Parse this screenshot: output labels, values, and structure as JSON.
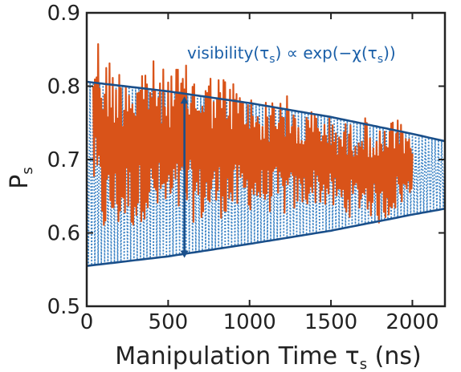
{
  "chart_data": {
    "type": "line",
    "title": "",
    "xlabel": "Manipulation Time τ",
    "xlabel_sub": "s",
    "xlabel_unit": " (ns)",
    "ylabel": "P",
    "ylabel_sub": "s",
    "xlim": [
      0,
      2200
    ],
    "ylim": [
      0.5,
      0.9
    ],
    "xticks": [
      0,
      500,
      1000,
      1500,
      2000
    ],
    "yticks": [
      0.5,
      0.6,
      0.7,
      0.8,
      0.9
    ],
    "grid": false,
    "legend": "none",
    "annotation": {
      "text_parts": [
        "visibility(τ",
        "s",
        ") ∝ exp(−χ(τ",
        "s",
        "))"
      ],
      "arrow_x": 600,
      "arrow_y": [
        0.566,
        0.786
      ]
    },
    "series": [
      {
        "kind": "envelope-upper",
        "color": "#1a4f8a",
        "x": [
          0,
          500,
          1000,
          1500,
          2000,
          2200
        ],
        "y": [
          0.806,
          0.793,
          0.777,
          0.758,
          0.735,
          0.725
        ]
      },
      {
        "kind": "envelope-lower",
        "color": "#1a4f8a",
        "x": [
          0,
          500,
          1000,
          1500,
          2000,
          2200
        ],
        "y": [
          0.555,
          0.568,
          0.585,
          0.603,
          0.625,
          0.633
        ]
      },
      {
        "kind": "fit-oscillation-dotted",
        "color": "#2a78c0",
        "x_range": [
          0,
          2200
        ],
        "period_ns": 20
      },
      {
        "kind": "measured",
        "color": "#d95319",
        "x": [
          40,
          60,
          80,
          100,
          150,
          200,
          250,
          300,
          350,
          400,
          450,
          500,
          600,
          700,
          800,
          900,
          1000,
          1100,
          1200,
          1300,
          1400,
          1500,
          1600,
          1700,
          1800,
          1900,
          2000
        ],
        "y_max": [
          0.85,
          0.88,
          0.87,
          0.85,
          0.84,
          0.83,
          0.84,
          0.82,
          0.84,
          0.84,
          0.82,
          0.83,
          0.83,
          0.82,
          0.82,
          0.81,
          0.79,
          0.78,
          0.8,
          0.76,
          0.77,
          0.76,
          0.75,
          0.76,
          0.74,
          0.76,
          0.72
        ],
        "y_min": [
          0.66,
          0.63,
          0.61,
          0.59,
          0.6,
          0.6,
          0.61,
          0.6,
          0.62,
          0.61,
          0.62,
          0.61,
          0.62,
          0.61,
          0.62,
          0.62,
          0.63,
          0.63,
          0.62,
          0.63,
          0.64,
          0.63,
          0.62,
          0.63,
          0.61,
          0.63,
          0.65
        ]
      }
    ]
  }
}
